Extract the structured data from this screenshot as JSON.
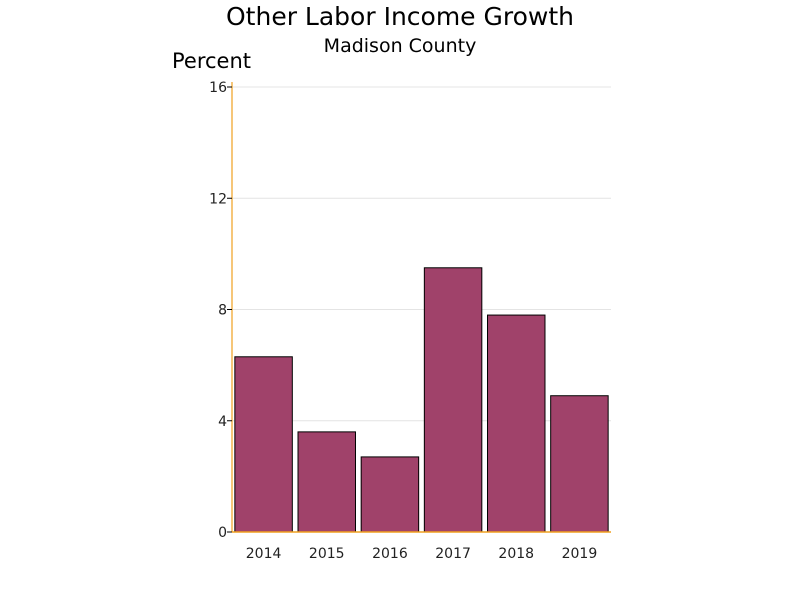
{
  "chart_data": {
    "type": "bar",
    "title": "Other Labor Income Growth",
    "subtitle": "Madison County",
    "ylabel": "Percent",
    "xlabel": "",
    "categories": [
      "2014",
      "2015",
      "2016",
      "2017",
      "2018",
      "2019"
    ],
    "values": [
      6.3,
      3.6,
      2.7,
      9.5,
      7.8,
      4.9
    ],
    "ylim": [
      0,
      16
    ],
    "yticks": [
      0,
      4,
      8,
      12,
      16
    ],
    "grid": true,
    "legend": "none",
    "bar_color": "#a0426a",
    "axis_color": "#f0a020"
  }
}
